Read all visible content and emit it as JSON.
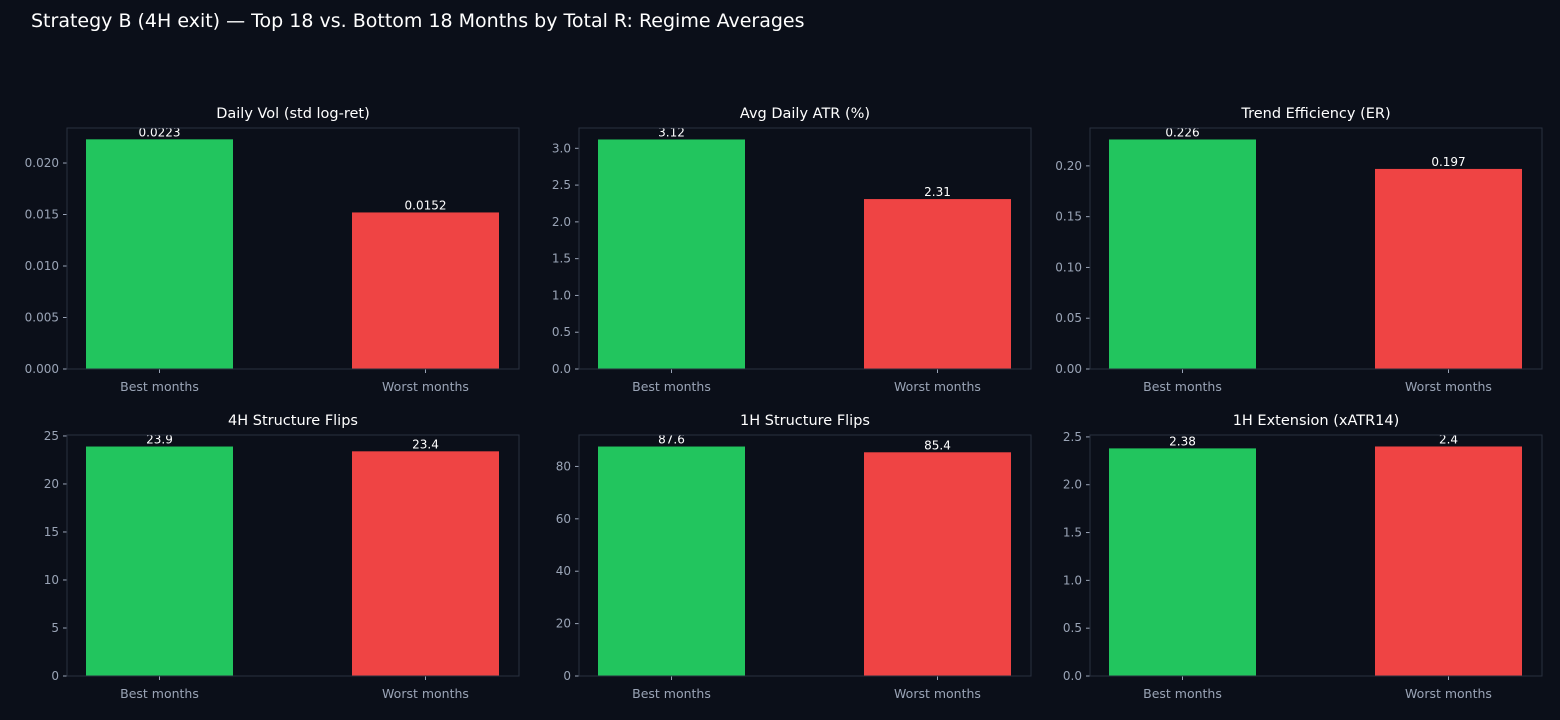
{
  "figure": {
    "title": "Strategy B (4H exit) — Top 18 vs. Bottom 18 Months by Total R: Regime Averages",
    "colors": {
      "background": "#0b0f19",
      "panel_border": "#2a3040",
      "tick_label": "#9aa4b6",
      "title_text": "#ffffff",
      "best_bar": "#22c55e",
      "worst_bar": "#ef4444"
    }
  },
  "chart_data": [
    {
      "type": "bar",
      "title": "Daily Vol (std log-ret)",
      "categories": [
        "Best months",
        "Worst months"
      ],
      "values": [
        0.0223,
        0.0152
      ],
      "value_labels": [
        "0.0223",
        "0.0152"
      ],
      "ylim": [
        0,
        0.0234
      ],
      "yticks": [
        0,
        0.005,
        0.01,
        0.015,
        0.02
      ],
      "ytick_labels": [
        "0.000",
        "0.005",
        "0.010",
        "0.015",
        "0.020"
      ],
      "xlabel": "",
      "ylabel": "",
      "grid": false
    },
    {
      "type": "bar",
      "title": "Avg Daily ATR (%)",
      "categories": [
        "Best months",
        "Worst months"
      ],
      "values": [
        3.12,
        2.31
      ],
      "value_labels": [
        "3.12",
        "2.31"
      ],
      "ylim": [
        0,
        3.276
      ],
      "yticks": [
        0,
        0.5,
        1.0,
        1.5,
        2.0,
        2.5,
        3.0
      ],
      "ytick_labels": [
        "0.0",
        "0.5",
        "1.0",
        "1.5",
        "2.0",
        "2.5",
        "3.0"
      ],
      "xlabel": "",
      "ylabel": "",
      "grid": false
    },
    {
      "type": "bar",
      "title": "Trend Efficiency (ER)",
      "categories": [
        "Best months",
        "Worst months"
      ],
      "values": [
        0.226,
        0.197
      ],
      "value_labels": [
        "0.226",
        "0.197"
      ],
      "ylim": [
        0,
        0.2373
      ],
      "yticks": [
        0,
        0.05,
        0.1,
        0.15,
        0.2
      ],
      "ytick_labels": [
        "0.00",
        "0.05",
        "0.10",
        "0.15",
        "0.20"
      ],
      "xlabel": "",
      "ylabel": "",
      "grid": false
    },
    {
      "type": "bar",
      "title": "4H Structure Flips",
      "categories": [
        "Best months",
        "Worst months"
      ],
      "values": [
        23.9,
        23.4
      ],
      "value_labels": [
        "23.9",
        "23.4"
      ],
      "ylim": [
        0,
        25.1
      ],
      "yticks": [
        0,
        5,
        10,
        15,
        20,
        25
      ],
      "ytick_labels": [
        "0",
        "5",
        "10",
        "15",
        "20",
        "25"
      ],
      "xlabel": "",
      "ylabel": "",
      "grid": false
    },
    {
      "type": "bar",
      "title": "1H Structure Flips",
      "categories": [
        "Best months",
        "Worst months"
      ],
      "values": [
        87.6,
        85.4
      ],
      "value_labels": [
        "87.6",
        "85.4"
      ],
      "ylim": [
        0,
        92.0
      ],
      "yticks": [
        0,
        20,
        40,
        60,
        80
      ],
      "ytick_labels": [
        "0",
        "20",
        "40",
        "60",
        "80"
      ],
      "xlabel": "",
      "ylabel": "",
      "grid": false
    },
    {
      "type": "bar",
      "title": "1H Extension (xATR14)",
      "categories": [
        "Best months",
        "Worst months"
      ],
      "values": [
        2.38,
        2.4
      ],
      "value_labels": [
        "2.38",
        "2.4"
      ],
      "ylim": [
        0,
        2.52
      ],
      "yticks": [
        0,
        0.5,
        1.0,
        1.5,
        2.0,
        2.5
      ],
      "ytick_labels": [
        "0.0",
        "0.5",
        "1.0",
        "1.5",
        "2.0",
        "2.5"
      ],
      "xlabel": "",
      "ylabel": "",
      "grid": false
    }
  ]
}
